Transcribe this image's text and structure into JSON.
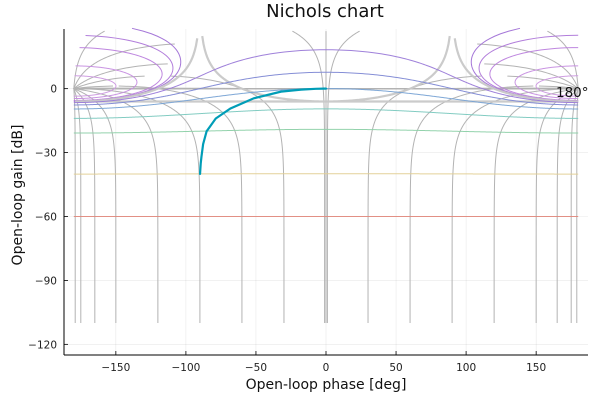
{
  "chart_data": {
    "type": "line",
    "title": "Nichols chart",
    "xlabel": "Open-loop phase [deg]",
    "ylabel": "Open-loop gain [dB]",
    "xlim": [
      -187,
      187
    ],
    "ylim": [
      -125,
      28
    ],
    "x_ticks": [
      -150,
      -100,
      -50,
      0,
      50,
      100,
      150
    ],
    "x_tick_labels": [
      "−150",
      "−100",
      "−50",
      "0",
      "50",
      "100",
      "150"
    ],
    "y_ticks": [
      0,
      -30,
      -60,
      -90,
      -120
    ],
    "y_tick_labels": [
      "0",
      "−30",
      "−60",
      "−90",
      "−120"
    ],
    "grid": true,
    "legend": false,
    "annotation": "180°",
    "closed_loop_gain_contours_db": [
      6,
      3,
      1,
      0.5,
      0.25,
      0,
      -1,
      -3,
      -6,
      -12,
      -20,
      -40,
      -60
    ],
    "closed_loop_phase_contours_deg": [
      -1,
      -5,
      -15,
      -30,
      -60,
      -90,
      -120,
      -150,
      -179
    ],
    "series": [
      {
        "color": "#009db7",
        "x": [
          -89.9,
          -89.4,
          -88.9,
          -87.7,
          -85.2,
          -78.7,
          -68.2,
          -51.5,
          -32.1,
          -17.8,
          -7.3,
          -1.4,
          0
        ],
        "y": [
          -40,
          -35,
          -32,
          -26,
          -20,
          -14,
          -9.3,
          -4.5,
          -1.4,
          -0.44,
          -0.07,
          0,
          0
        ]
      }
    ],
    "colors": {
      "phase_contours": "#b3b3b3",
      "mag_contours": [
        "#cc99e0",
        "#c68ee0",
        "#bb80dd",
        "#ae77d9",
        "#a070d6",
        "#c8c8c8",
        "#9a7ad8",
        "#7e88d4",
        "#77a2d4",
        "#7cc9bf",
        "#8dd0a8",
        "#e1cf94",
        "#e08a7e"
      ],
      "axis": "#000000"
    }
  }
}
